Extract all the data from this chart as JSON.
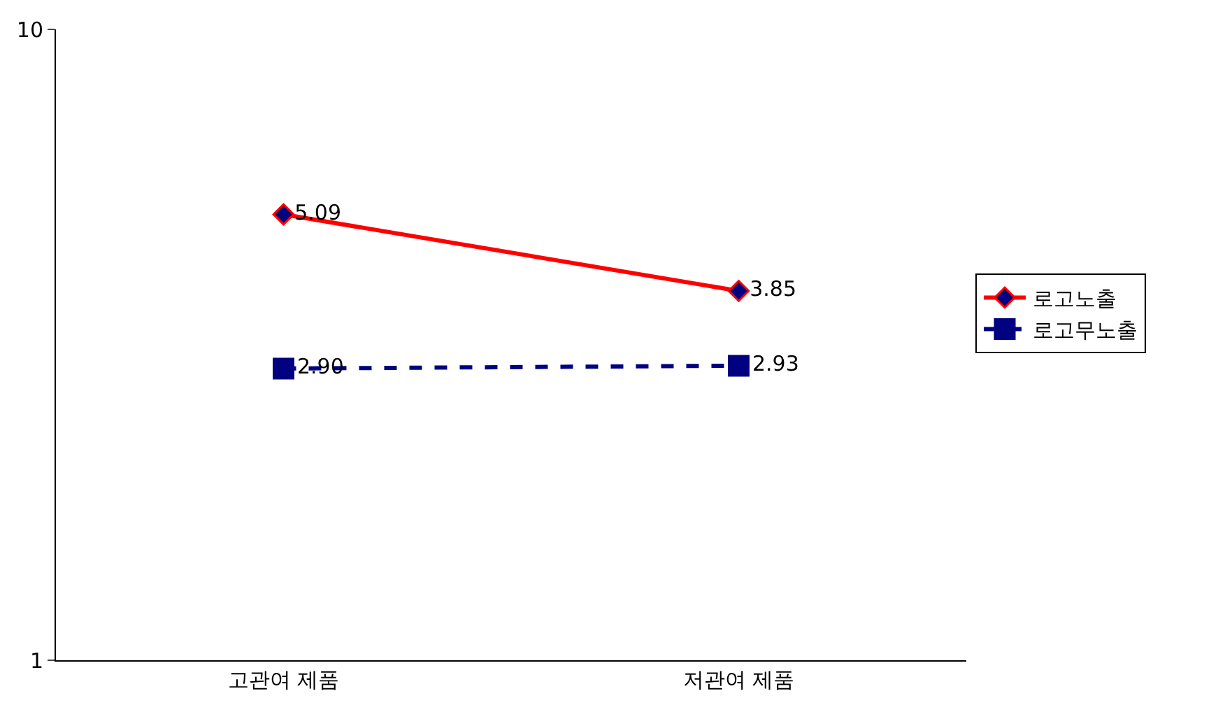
{
  "chart_data": {
    "type": "line",
    "categories": [
      "고관여 제품",
      "저관여 제품"
    ],
    "series": [
      {
        "name": "로고노출",
        "color": "#ff0000",
        "values": [
          5.09,
          3.85
        ],
        "value_labels": [
          "5.09",
          "3.85"
        ],
        "marker": "diamond",
        "line_style": "solid"
      },
      {
        "name": "로고무노출",
        "color": "#000080",
        "values": [
          2.9,
          2.93
        ],
        "value_labels": [
          "2.90",
          "2.93"
        ],
        "marker": "square",
        "line_style": "dashed"
      }
    ],
    "log": true,
    "ylim": [
      1,
      10
    ],
    "yticks": [
      1,
      10
    ],
    "legend": "right"
  }
}
